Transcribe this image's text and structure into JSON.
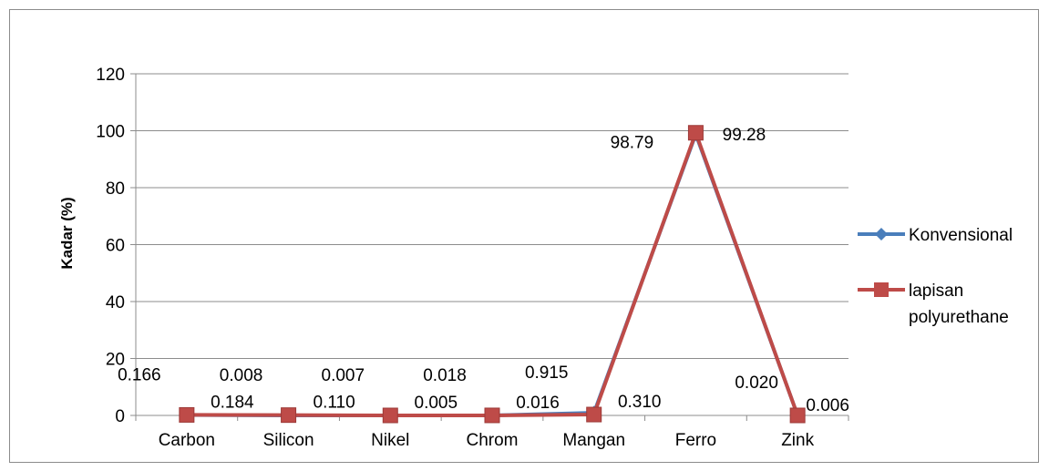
{
  "chart_data": {
    "type": "line",
    "categories": [
      "Carbon",
      "Silicon",
      "Nikel",
      "Chrom",
      "Mangan",
      "Ferro",
      "Zink"
    ],
    "series": [
      {
        "name": "Konvensional",
        "values": [
          0.166,
          0.008,
          0.007,
          0.018,
          0.915,
          98.79,
          0.02
        ],
        "labels": [
          "0.166",
          "0.008",
          "0.007",
          "0.018",
          "0.915",
          "98.79",
          "0.020"
        ],
        "color": "#4a7ebb",
        "marker": "diamond"
      },
      {
        "name": "lapisan polyurethane",
        "values": [
          0.184,
          0.11,
          0.005,
          0.016,
          0.31,
          99.28,
          0.006
        ],
        "labels": [
          "0.184",
          "0.110",
          "0.005",
          "0.016",
          "0.310",
          "99.28",
          "0.006"
        ],
        "color": "#be4b48",
        "marker": "square"
      }
    ],
    "title": "",
    "xlabel": "",
    "ylabel": "Kadar (%)",
    "ylim": [
      0,
      120
    ],
    "yticks": [
      0,
      20,
      40,
      60,
      80,
      100,
      120
    ],
    "grid": true,
    "legend": "right"
  }
}
